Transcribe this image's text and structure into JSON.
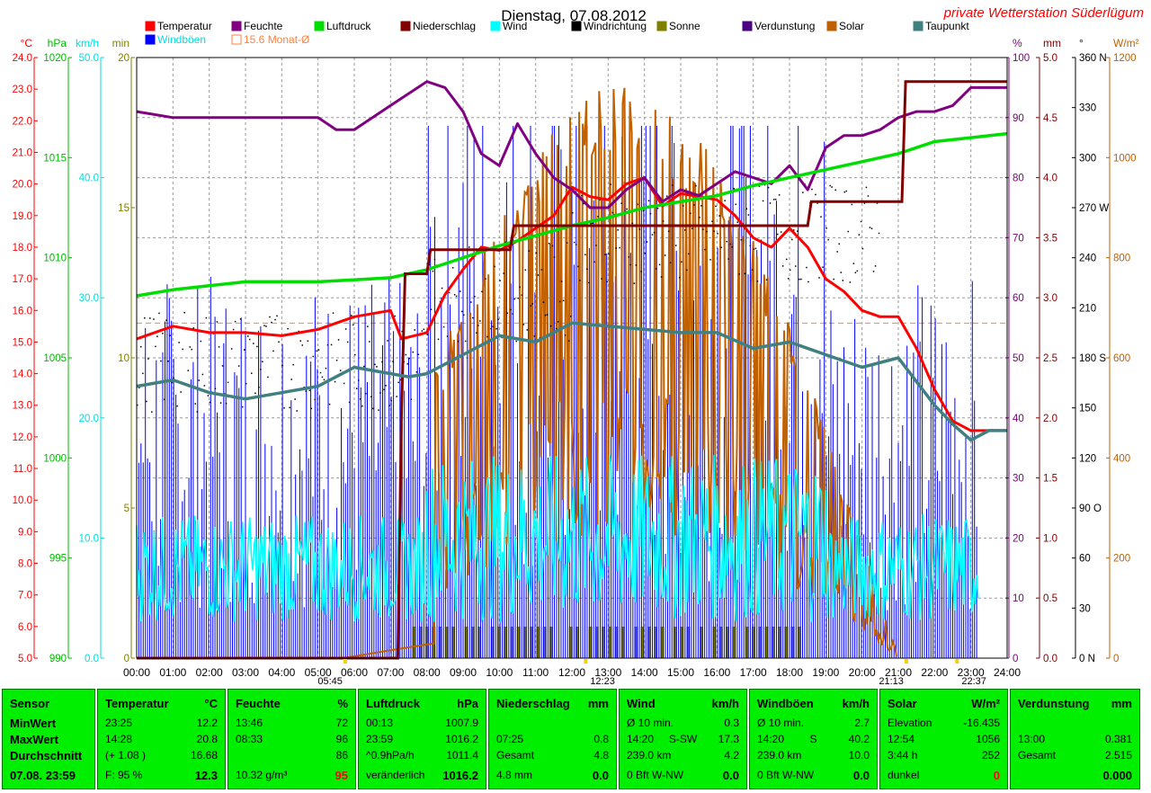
{
  "title": "Dienstag, 07.08.2012",
  "station": "private Wetterstation Süderlügum",
  "legend": [
    {
      "label": "Temperatur",
      "color": "#ff0000"
    },
    {
      "label": "Feuchte",
      "color": "#800080"
    },
    {
      "label": "Luftdruck",
      "color": "#00dd00"
    },
    {
      "label": "Niederschlag",
      "color": "#800000"
    },
    {
      "label": "Wind",
      "color": "#00ffff"
    },
    {
      "label": "Windrichtung",
      "color": "#000000"
    },
    {
      "label": "Sonne",
      "color": "#808000"
    },
    {
      "label": "Verdunstung",
      "color": "#4b0082"
    },
    {
      "label": "Solar",
      "color": "#c06000"
    },
    {
      "label": "Taupunkt",
      "color": "#408080"
    },
    {
      "label": "Windböen",
      "color": "#0000ff"
    },
    {
      "label": "15.6 Monat-Ø",
      "color": "#ff8040"
    }
  ],
  "axes": {
    "temp": {
      "unit": "°C",
      "ticks": [
        "24.0",
        "23.0",
        "22.0",
        "21.0",
        "20.0",
        "19.0",
        "18.0",
        "17.0",
        "16.0",
        "15.0",
        "14.0",
        "13.0",
        "12.0",
        "11.0",
        "10.0",
        "9.0",
        "8.0",
        "7.0",
        "6.0",
        "5.0"
      ],
      "color": "#ff0000"
    },
    "pressure": {
      "unit": "hPa",
      "ticks": [
        "1020",
        "1015",
        "1010",
        "1005",
        "1000",
        "995",
        "990"
      ],
      "color": "#00bb00"
    },
    "wind": {
      "unit": "km/h",
      "ticks": [
        "50.0",
        "40.0",
        "30.0",
        "20.0",
        "10.0",
        "0.0"
      ],
      "color": "#00dddd"
    },
    "minutes": {
      "unit": "min",
      "ticks": [
        "20",
        "15",
        "10",
        "5",
        "0"
      ],
      "color": "#808000"
    },
    "humidity": {
      "unit": "%",
      "ticks": [
        "100",
        "90",
        "80",
        "70",
        "60",
        "50",
        "40",
        "30",
        "20",
        "10",
        "0"
      ],
      "color": "#800080"
    },
    "rain": {
      "unit": "mm",
      "ticks": [
        "5.0",
        "4.5",
        "4.0",
        "3.5",
        "3.0",
        "2.5",
        "2.0",
        "1.5",
        "1.0",
        "0.5",
        "0.0"
      ],
      "color": "#800000"
    },
    "direction": {
      "unit": "°",
      "ticks": [
        "360 N",
        "330",
        "300",
        "270 W",
        "240",
        "210",
        "180 S",
        "150",
        "120",
        "90 O",
        "60",
        "30",
        "0 N"
      ],
      "color": "#000000"
    },
    "solar": {
      "unit": "W/m²",
      "ticks": [
        "1200",
        "1000",
        "800",
        "600",
        "400",
        "200",
        "0"
      ],
      "color": "#c06000"
    },
    "time": [
      "00:00",
      "01:00",
      "02:00",
      "03:00",
      "04:00",
      "05:00",
      "06:00",
      "07:00",
      "08:00",
      "09:00",
      "10:00",
      "11:00",
      "12:00",
      "13:00",
      "14:00",
      "15:00",
      "16:00",
      "17:00",
      "18:00",
      "19:00",
      "20:00",
      "21:00",
      "22:00",
      "23:00",
      "24:00"
    ]
  },
  "markers": {
    "sunrise": "05:45",
    "noon": "12:23",
    "sunset": "21:13",
    "last": "22:37"
  },
  "chart_data": {
    "type": "line",
    "title": "Dienstag, 07.08.2012",
    "x_unit": "hours",
    "xlim": [
      0,
      24
    ],
    "grid": true,
    "legend_position": "top",
    "series": [
      {
        "name": "Temperatur",
        "axis": "°C",
        "color": "#ff0000",
        "x": [
          0,
          1,
          2,
          3,
          4,
          5,
          6,
          7,
          7.3,
          8,
          8.5,
          9,
          9.5,
          10,
          10.5,
          11,
          11.5,
          12,
          12.5,
          13,
          13.5,
          14,
          14.5,
          15,
          15.5,
          16,
          16.5,
          17,
          17.5,
          18,
          18.5,
          19,
          19.5,
          20,
          20.5,
          21,
          21.5,
          22,
          22.5,
          23,
          23.5,
          24
        ],
        "y": [
          15.1,
          15.5,
          15.3,
          15.3,
          15.2,
          15.4,
          15.8,
          16.0,
          15.1,
          15.3,
          16.5,
          17.3,
          18.0,
          17.9,
          18.2,
          18.6,
          19.0,
          19.9,
          19.6,
          19.5,
          20.0,
          20.2,
          19.3,
          19.7,
          19.6,
          19.5,
          19.0,
          18.3,
          18.0,
          18.6,
          18.0,
          17.0,
          16.6,
          16.0,
          15.8,
          15.8,
          14.8,
          13.5,
          12.5,
          12.2,
          12.2,
          12.2
        ]
      },
      {
        "name": "Feuchte",
        "axis": "%",
        "color": "#800080",
        "x": [
          0,
          1,
          2,
          3,
          4,
          5,
          5.5,
          6,
          7,
          8,
          8.5,
          9,
          9.5,
          10,
          10.5,
          11,
          11.5,
          12,
          12.5,
          13,
          13.5,
          14,
          14.5,
          15,
          15.5,
          16,
          16.5,
          17,
          17.5,
          18,
          18.5,
          19,
          19.5,
          20,
          20.5,
          21,
          21.5,
          22,
          22.5,
          23,
          23.5,
          24
        ],
        "y": [
          91,
          90,
          90,
          90,
          90,
          90,
          88,
          88,
          92,
          96,
          95,
          91,
          84,
          82,
          89,
          84,
          80,
          78,
          75,
          75,
          78,
          80,
          76,
          78,
          77,
          79,
          81,
          80,
          79,
          82,
          78,
          85,
          87,
          87,
          88,
          90,
          91,
          91,
          92,
          95,
          95,
          95
        ]
      },
      {
        "name": "Luftdruck",
        "axis": "hPa",
        "color": "#00dd00",
        "x": [
          0,
          1,
          2,
          3,
          4,
          5,
          6,
          7,
          8,
          9,
          10,
          11,
          12,
          13,
          14,
          15,
          16,
          17,
          18,
          19,
          20,
          21,
          22,
          23,
          24
        ],
        "y": [
          1008.1,
          1008.4,
          1008.6,
          1008.8,
          1008.8,
          1008.8,
          1008.9,
          1009.0,
          1009.4,
          1010.0,
          1010.6,
          1011.1,
          1011.6,
          1012.0,
          1012.5,
          1012.8,
          1013.1,
          1013.6,
          1014.0,
          1014.4,
          1014.8,
          1015.2,
          1015.8,
          1016.0,
          1016.2
        ]
      },
      {
        "name": "Niederschlag",
        "axis": "mm",
        "color": "#800000",
        "x": [
          0,
          7.2,
          7.3,
          7.4,
          8.0,
          8.1,
          10.3,
          10.4,
          18.5,
          18.6,
          21.1,
          21.2,
          24
        ],
        "y": [
          0,
          0,
          2.0,
          3.2,
          3.2,
          3.4,
          3.4,
          3.6,
          3.6,
          3.8,
          3.8,
          4.8,
          4.8
        ]
      },
      {
        "name": "Taupunkt",
        "axis": "°C",
        "color": "#408080",
        "x": [
          0,
          1,
          2,
          3,
          4,
          5,
          6,
          7,
          7.5,
          8,
          9,
          10,
          11,
          12,
          13,
          14,
          15,
          16,
          17,
          18,
          19,
          20,
          21,
          22,
          22.5,
          23,
          23.5,
          24
        ],
        "y": [
          13.6,
          13.8,
          13.4,
          13.2,
          13.4,
          13.6,
          14.2,
          14.0,
          13.9,
          14.0,
          14.6,
          15.2,
          15.0,
          15.6,
          15.5,
          15.4,
          15.3,
          15.3,
          14.8,
          15.0,
          14.6,
          14.2,
          14.5,
          13.0,
          12.4,
          11.9,
          12.2,
          12.2
        ]
      }
    ]
  },
  "summary": {
    "sensor": {
      "title": "Sensor",
      "rows": [
        "MinWert",
        "MaxWert",
        "Durchschnitt",
        "07.08. 23:59"
      ]
    },
    "temp": {
      "title": "Temperatur",
      "unit": "°C",
      "rows": [
        [
          "23:25",
          "12.2"
        ],
        [
          "14:28",
          "20.8"
        ],
        [
          "(+ 1.08 )",
          "16.68"
        ],
        [
          "F: 95 %",
          "12.3"
        ]
      ]
    },
    "humidity": {
      "title": "Feuchte",
      "unit": "%",
      "rows": [
        [
          "13:46",
          "72"
        ],
        [
          "08:33",
          "96"
        ],
        [
          "",
          "86"
        ],
        [
          "10.32 g/m³",
          "95"
        ]
      ]
    },
    "pressure": {
      "title": "Luftdruck",
      "unit": "hPa",
      "rows": [
        [
          "00:13",
          "1007.9"
        ],
        [
          "23:59",
          "1016.2"
        ],
        [
          "^0.9hPa/h",
          "1011.4"
        ],
        [
          "veränderlich",
          "1016.2"
        ]
      ]
    },
    "rain": {
      "title": "Niederschlag",
      "unit": "mm",
      "rows": [
        [
          "",
          ""
        ],
        [
          "07:25",
          "0.8"
        ],
        [
          "Gesamt",
          "4.8"
        ],
        [
          "4.8 mm",
          "0.0"
        ]
      ]
    },
    "wind": {
      "title": "Wind",
      "unit": "km/h",
      "rows": [
        [
          "Ø 10 min.",
          "",
          "0.3"
        ],
        [
          "14:20",
          "S-SW",
          "17.3"
        ],
        [
          "239.0 km",
          "",
          "4.2"
        ],
        [
          "0 Bft W-NW",
          "",
          "0.0"
        ]
      ]
    },
    "gust": {
      "title": "Windböen",
      "unit": "km/h",
      "rows": [
        [
          "Ø 10 min.",
          "",
          "2.7"
        ],
        [
          "14:20",
          "S",
          "40.2"
        ],
        [
          "239.0 km",
          "",
          "10.0"
        ],
        [
          "0 Bft W-NW",
          "",
          "0.0"
        ]
      ]
    },
    "solar": {
      "title": "Solar",
      "unit": "W/m²",
      "rows": [
        [
          "Elevation",
          "-16.435"
        ],
        [
          "12:54",
          "1056"
        ],
        [
          "3:44 h",
          "252"
        ],
        [
          "dunkel",
          "0"
        ]
      ]
    },
    "evap": {
      "title": "Verdunstung",
      "unit": "mm",
      "rows": [
        [
          "",
          ""
        ],
        [
          "13:00",
          "0.381"
        ],
        [
          "Gesamt",
          "2.515"
        ],
        [
          "",
          "0.000"
        ]
      ]
    }
  }
}
